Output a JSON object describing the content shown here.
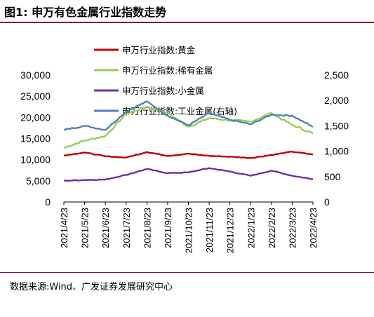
{
  "figure": {
    "title": "图1:  申万有色金属行业指数走势",
    "source": "数据来源:Wind、广发证券发展研究中心"
  },
  "colors": {
    "gold": "#c00000",
    "rare": "#92d050",
    "minor": "#7030a0",
    "industrial": "#4f81bd",
    "rule": "#8a0f1f"
  },
  "chart_data": {
    "type": "line",
    "x": [
      "2021/4/23",
      "2021/5/23",
      "2021/6/23",
      "2021/7/23",
      "2021/8/23",
      "2021/9/23",
      "2021/10/23",
      "2021/11/23",
      "2021/12/23",
      "2022/1/23",
      "2022/2/23",
      "2022/3/23",
      "2022/4/23"
    ],
    "x_labels": [
      "2021/4/23",
      "2021/5/23",
      "2021/6/23",
      "2021/7/23",
      "2021/8/23",
      "2021/9/23",
      "2021/10/23",
      "2021/11/23",
      "2021/12/23",
      "2022/1/23",
      "2022/2/23",
      "2022/3/23",
      "2022/4/23"
    ],
    "y_left": {
      "ylim": [
        0,
        30000
      ],
      "ticks": [
        "0",
        "5,000",
        "10,000",
        "15,000",
        "20,000",
        "25,000",
        "30,000"
      ]
    },
    "y_right": {
      "ylim": [
        0,
        2500
      ],
      "ticks": [
        "0",
        "500",
        "1,000",
        "1,500",
        "2,000",
        "2,500"
      ]
    },
    "legend_position": "top-center",
    "grid": false,
    "series": [
      {
        "name": "申万行业指数:黄金",
        "axis": "left",
        "color_key": "gold",
        "values": [
          11000,
          11700,
          10800,
          10500,
          11800,
          10900,
          11400,
          10900,
          10700,
          10400,
          11100,
          11900,
          11200
        ]
      },
      {
        "name": "申万行业指数:稀有金属",
        "axis": "left",
        "color_key": "rare",
        "values": [
          12800,
          14500,
          15600,
          20800,
          22500,
          21000,
          17800,
          19800,
          19300,
          19000,
          21000,
          18200,
          16200
        ]
      },
      {
        "name": "申万行业指数:小金属",
        "axis": "left",
        "color_key": "minor",
        "values": [
          5000,
          5200,
          5300,
          6400,
          7800,
          6800,
          7000,
          8000,
          7200,
          6200,
          7400,
          6200,
          5400
        ]
      },
      {
        "name": "申万行业指数:工业金属(右轴)",
        "axis": "right",
        "color_key": "industrial",
        "values": [
          1420,
          1500,
          1420,
          1780,
          1980,
          1700,
          1510,
          1750,
          1620,
          1530,
          1720,
          1700,
          1480
        ]
      }
    ]
  }
}
